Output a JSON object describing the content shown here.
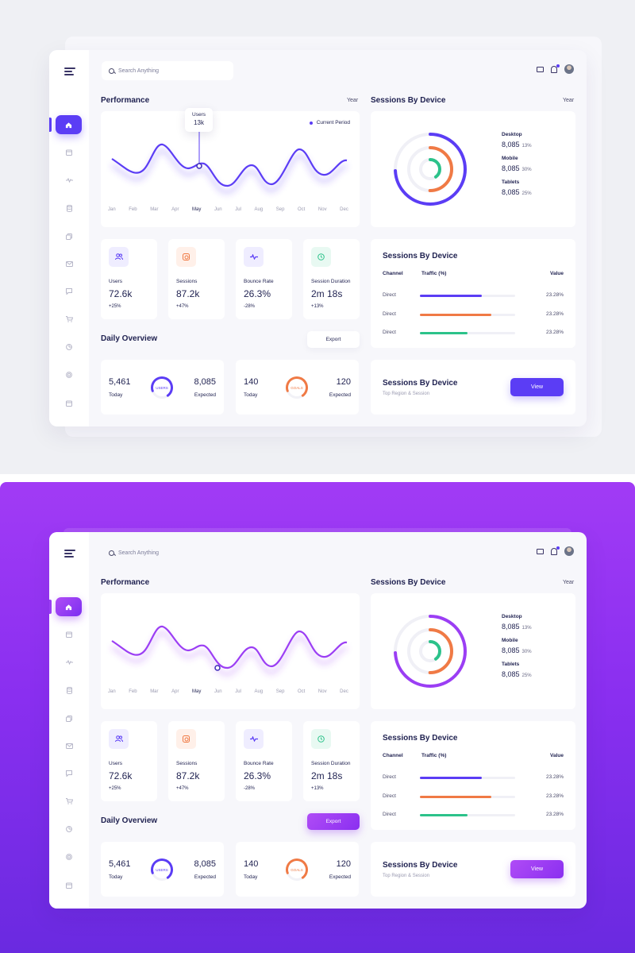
{
  "search": {
    "placeholder": "Search Anything"
  },
  "performance": {
    "title": "Performance",
    "period": "Year",
    "legend": "Current Period",
    "tooltip_label": "Users",
    "tooltip_value": "13k",
    "months": [
      "Jan",
      "Feb",
      "Mar",
      "Apr",
      "May",
      "Jun",
      "Jul",
      "Aug",
      "Sep",
      "Oct",
      "Nov",
      "Dec"
    ],
    "selected_month": "May"
  },
  "sessions": {
    "title": "Sessions By Device",
    "period": "Year",
    "devices": [
      {
        "label": "Desktop",
        "value": "8,085",
        "pct": "13%"
      },
      {
        "label": "Mobile",
        "value": "8,085",
        "pct": "30%"
      },
      {
        "label": "Tablets",
        "value": "8,085",
        "pct": "25%"
      }
    ]
  },
  "stats": [
    {
      "label": "Users",
      "value": "72.6k",
      "change": "+25%",
      "icon": "users-icon",
      "color": "#5b3df5",
      "bg": "#efedff"
    },
    {
      "label": "Sessions",
      "value": "87.2k",
      "change": "+47%",
      "icon": "sessions-icon",
      "color": "#f07a45",
      "bg": "#fff0e9"
    },
    {
      "label": "Bounce Rate",
      "value": "26.3%",
      "change": "-28%",
      "icon": "pulse-icon",
      "color": "#5b3df5",
      "bg": "#efedff"
    },
    {
      "label": "Session Duration",
      "value": "2m 18s",
      "change": "+13%",
      "icon": "clock-icon",
      "color": "#2cc28a",
      "bg": "#e8f9f2"
    }
  ],
  "traffic": {
    "title": "Sessions By Device",
    "col_channel": "Channel",
    "col_traffic": "Traffic (%)",
    "col_value": "Value",
    "rows": [
      {
        "channel": "Direct",
        "value": "23.28%",
        "fill": 0.65,
        "color": "#5b3df5"
      },
      {
        "channel": "Direct",
        "value": "23.28%",
        "fill": 0.75,
        "color": "#f07a45"
      },
      {
        "channel": "Direct",
        "value": "23.28%",
        "fill": 0.5,
        "color": "#2cc28a"
      }
    ]
  },
  "daily": {
    "title": "Daily Overview",
    "export": "Export",
    "cards": [
      {
        "today": "5,461",
        "today_label": "Today",
        "expected": "8,085",
        "expected_label": "Expected",
        "ring_label": "USERS",
        "color": "#5b3df5"
      },
      {
        "today": "140",
        "today_label": "Today",
        "expected": "120",
        "expected_label": "Expected",
        "ring_label": "GOALS",
        "color": "#f07a45"
      }
    ]
  },
  "footer_card": {
    "title": "Sessions By Device",
    "subtitle": "Top Region & Session",
    "button": "View"
  }
}
